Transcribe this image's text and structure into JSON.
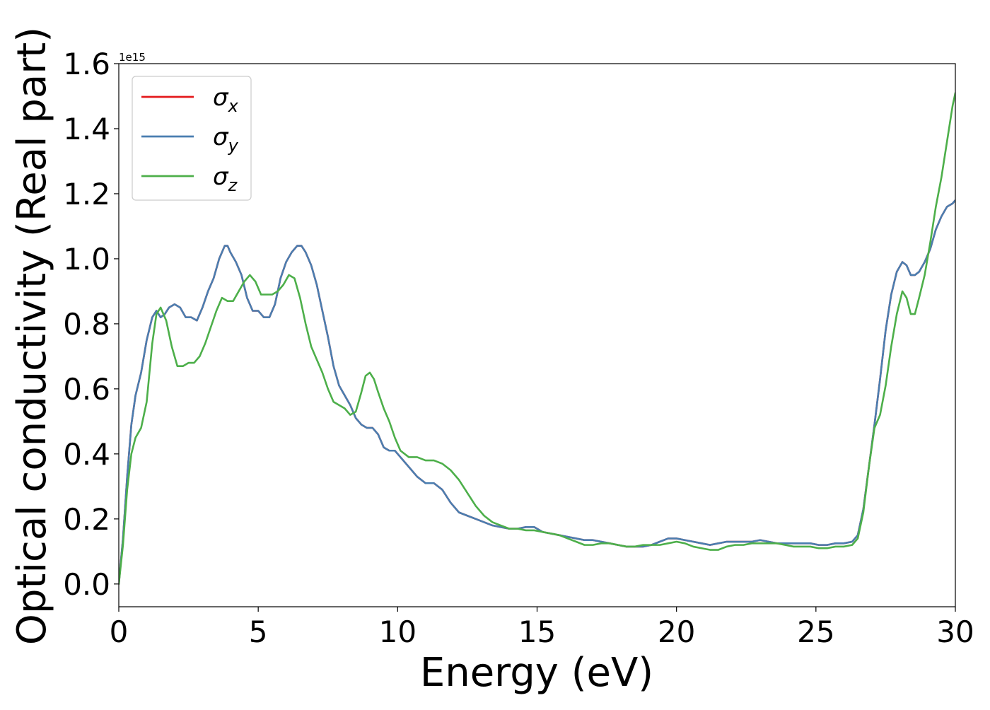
{
  "chart_data": {
    "type": "line",
    "xlabel": "Energy (eV)",
    "ylabel": "Optical conductivity (Real part)",
    "offset_text": "1e15",
    "xlim": [
      0,
      30
    ],
    "ylim": [
      -0.07,
      1.6
    ],
    "x_ticks": [
      {
        "value": 0,
        "label": "0"
      },
      {
        "value": 5,
        "label": "5"
      },
      {
        "value": 10,
        "label": "10"
      },
      {
        "value": 15,
        "label": "15"
      },
      {
        "value": 20,
        "label": "20"
      },
      {
        "value": 25,
        "label": "25"
      },
      {
        "value": 30,
        "label": "30"
      }
    ],
    "y_ticks": [
      {
        "value": 0.0,
        "label": "0.0"
      },
      {
        "value": 0.2,
        "label": "0.2"
      },
      {
        "value": 0.4,
        "label": "0.4"
      },
      {
        "value": 0.6,
        "label": "0.6"
      },
      {
        "value": 0.8,
        "label": "0.8"
      },
      {
        "value": 1.0,
        "label": "1.0"
      },
      {
        "value": 1.2,
        "label": "1.2"
      },
      {
        "value": 1.4,
        "label": "1.4"
      },
      {
        "value": 1.6,
        "label": "1.6"
      }
    ],
    "grid": false,
    "legend_position": "top-left",
    "series": [
      {
        "name": "σx",
        "symbol": "σ",
        "subscript": "x",
        "color": "#e41a1c",
        "x": [
          0,
          0.15,
          0.3,
          0.45,
          0.6,
          0.8,
          1.0,
          1.2,
          1.35,
          1.5,
          1.65,
          1.8,
          2.0,
          2.2,
          2.4,
          2.6,
          2.8,
          3.0,
          3.2,
          3.4,
          3.6,
          3.8,
          3.9,
          4.0,
          4.2,
          4.4,
          4.6,
          4.8,
          5.0,
          5.2,
          5.4,
          5.6,
          5.8,
          6.0,
          6.2,
          6.4,
          6.55,
          6.7,
          6.9,
          7.1,
          7.3,
          7.5,
          7.7,
          7.9,
          8.1,
          8.3,
          8.5,
          8.7,
          8.9,
          9.1,
          9.3,
          9.5,
          9.7,
          9.9,
          10.1,
          10.4,
          10.7,
          11.0,
          11.3,
          11.6,
          11.9,
          12.2,
          12.5,
          12.8,
          13.1,
          13.4,
          13.7,
          14.0,
          14.3,
          14.6,
          14.9,
          15.2,
          15.5,
          15.8,
          16.1,
          16.4,
          16.7,
          17.0,
          17.3,
          17.6,
          17.9,
          18.2,
          18.5,
          18.8,
          19.1,
          19.4,
          19.7,
          20.0,
          20.3,
          20.6,
          20.9,
          21.2,
          21.5,
          21.8,
          22.1,
          22.4,
          22.7,
          23.0,
          23.3,
          23.6,
          23.9,
          24.2,
          24.5,
          24.8,
          25.1,
          25.4,
          25.7,
          26.0,
          26.3,
          26.5,
          26.7,
          26.9,
          27.1,
          27.3,
          27.5,
          27.7,
          27.9,
          28.1,
          28.25,
          28.4,
          28.55,
          28.7,
          28.9,
          29.1,
          29.3,
          29.5,
          29.7,
          29.9,
          30.0
        ],
        "values": [
          0.0,
          0.14,
          0.33,
          0.49,
          0.58,
          0.65,
          0.75,
          0.82,
          0.84,
          0.82,
          0.83,
          0.85,
          0.86,
          0.85,
          0.82,
          0.82,
          0.81,
          0.85,
          0.9,
          0.94,
          1.0,
          1.04,
          1.04,
          1.02,
          0.99,
          0.95,
          0.88,
          0.84,
          0.84,
          0.82,
          0.82,
          0.86,
          0.94,
          0.99,
          1.02,
          1.04,
          1.04,
          1.02,
          0.98,
          0.92,
          0.84,
          0.76,
          0.67,
          0.61,
          0.58,
          0.55,
          0.51,
          0.49,
          0.48,
          0.48,
          0.46,
          0.42,
          0.41,
          0.41,
          0.39,
          0.36,
          0.33,
          0.31,
          0.31,
          0.29,
          0.25,
          0.22,
          0.21,
          0.2,
          0.19,
          0.18,
          0.175,
          0.17,
          0.17,
          0.175,
          0.175,
          0.16,
          0.155,
          0.15,
          0.145,
          0.14,
          0.135,
          0.135,
          0.13,
          0.125,
          0.12,
          0.115,
          0.115,
          0.115,
          0.12,
          0.13,
          0.14,
          0.14,
          0.135,
          0.13,
          0.125,
          0.12,
          0.125,
          0.13,
          0.13,
          0.13,
          0.13,
          0.135,
          0.13,
          0.125,
          0.125,
          0.125,
          0.125,
          0.125,
          0.12,
          0.12,
          0.125,
          0.125,
          0.13,
          0.15,
          0.23,
          0.36,
          0.49,
          0.63,
          0.78,
          0.89,
          0.96,
          0.99,
          0.98,
          0.95,
          0.95,
          0.96,
          0.99,
          1.03,
          1.09,
          1.13,
          1.16,
          1.17,
          1.18
        ]
      },
      {
        "name": "σy",
        "symbol": "σ",
        "subscript": "y",
        "color": "#4a7eb0",
        "x": [
          0,
          0.15,
          0.3,
          0.45,
          0.6,
          0.8,
          1.0,
          1.2,
          1.35,
          1.5,
          1.65,
          1.8,
          2.0,
          2.2,
          2.4,
          2.6,
          2.8,
          3.0,
          3.2,
          3.4,
          3.6,
          3.8,
          3.9,
          4.0,
          4.2,
          4.4,
          4.6,
          4.8,
          5.0,
          5.2,
          5.4,
          5.6,
          5.8,
          6.0,
          6.2,
          6.4,
          6.55,
          6.7,
          6.9,
          7.1,
          7.3,
          7.5,
          7.7,
          7.9,
          8.1,
          8.3,
          8.5,
          8.7,
          8.9,
          9.1,
          9.3,
          9.5,
          9.7,
          9.9,
          10.1,
          10.4,
          10.7,
          11.0,
          11.3,
          11.6,
          11.9,
          12.2,
          12.5,
          12.8,
          13.1,
          13.4,
          13.7,
          14.0,
          14.3,
          14.6,
          14.9,
          15.2,
          15.5,
          15.8,
          16.1,
          16.4,
          16.7,
          17.0,
          17.3,
          17.6,
          17.9,
          18.2,
          18.5,
          18.8,
          19.1,
          19.4,
          19.7,
          20.0,
          20.3,
          20.6,
          20.9,
          21.2,
          21.5,
          21.8,
          22.1,
          22.4,
          22.7,
          23.0,
          23.3,
          23.6,
          23.9,
          24.2,
          24.5,
          24.8,
          25.1,
          25.4,
          25.7,
          26.0,
          26.3,
          26.5,
          26.7,
          26.9,
          27.1,
          27.3,
          27.5,
          27.7,
          27.9,
          28.1,
          28.25,
          28.4,
          28.55,
          28.7,
          28.9,
          29.1,
          29.3,
          29.5,
          29.7,
          29.9,
          30.0
        ],
        "values": [
          0.0,
          0.14,
          0.33,
          0.49,
          0.58,
          0.65,
          0.75,
          0.82,
          0.84,
          0.82,
          0.83,
          0.85,
          0.86,
          0.85,
          0.82,
          0.82,
          0.81,
          0.85,
          0.9,
          0.94,
          1.0,
          1.04,
          1.04,
          1.02,
          0.99,
          0.95,
          0.88,
          0.84,
          0.84,
          0.82,
          0.82,
          0.86,
          0.94,
          0.99,
          1.02,
          1.04,
          1.04,
          1.02,
          0.98,
          0.92,
          0.84,
          0.76,
          0.67,
          0.61,
          0.58,
          0.55,
          0.51,
          0.49,
          0.48,
          0.48,
          0.46,
          0.42,
          0.41,
          0.41,
          0.39,
          0.36,
          0.33,
          0.31,
          0.31,
          0.29,
          0.25,
          0.22,
          0.21,
          0.2,
          0.19,
          0.18,
          0.175,
          0.17,
          0.17,
          0.175,
          0.175,
          0.16,
          0.155,
          0.15,
          0.145,
          0.14,
          0.135,
          0.135,
          0.13,
          0.125,
          0.12,
          0.115,
          0.115,
          0.115,
          0.12,
          0.13,
          0.14,
          0.14,
          0.135,
          0.13,
          0.125,
          0.12,
          0.125,
          0.13,
          0.13,
          0.13,
          0.13,
          0.135,
          0.13,
          0.125,
          0.125,
          0.125,
          0.125,
          0.125,
          0.12,
          0.12,
          0.125,
          0.125,
          0.13,
          0.15,
          0.23,
          0.36,
          0.49,
          0.63,
          0.78,
          0.89,
          0.96,
          0.99,
          0.98,
          0.95,
          0.95,
          0.96,
          0.99,
          1.03,
          1.09,
          1.13,
          1.16,
          1.17,
          1.18
        ]
      },
      {
        "name": "σz",
        "symbol": "σ",
        "subscript": "z",
        "color": "#4daf4a",
        "x": [
          0,
          0.15,
          0.3,
          0.45,
          0.6,
          0.8,
          1.0,
          1.2,
          1.35,
          1.5,
          1.7,
          1.9,
          2.1,
          2.3,
          2.5,
          2.7,
          2.9,
          3.1,
          3.3,
          3.5,
          3.7,
          3.9,
          4.1,
          4.3,
          4.5,
          4.7,
          4.9,
          5.1,
          5.3,
          5.5,
          5.7,
          5.9,
          6.1,
          6.3,
          6.5,
          6.7,
          6.9,
          7.1,
          7.3,
          7.5,
          7.7,
          7.9,
          8.1,
          8.3,
          8.5,
          8.7,
          8.85,
          9.0,
          9.15,
          9.3,
          9.5,
          9.7,
          9.9,
          10.1,
          10.4,
          10.7,
          11.0,
          11.3,
          11.6,
          11.9,
          12.2,
          12.5,
          12.8,
          13.1,
          13.4,
          13.7,
          14.0,
          14.3,
          14.6,
          14.9,
          15.2,
          15.5,
          15.8,
          16.1,
          16.4,
          16.7,
          17.0,
          17.3,
          17.6,
          17.9,
          18.2,
          18.5,
          18.8,
          19.1,
          19.4,
          19.7,
          20.0,
          20.3,
          20.6,
          20.9,
          21.2,
          21.5,
          21.8,
          22.1,
          22.4,
          22.7,
          23.0,
          23.3,
          23.6,
          23.9,
          24.2,
          24.5,
          24.8,
          25.1,
          25.4,
          25.7,
          26.0,
          26.3,
          26.5,
          26.7,
          26.9,
          27.1,
          27.3,
          27.5,
          27.7,
          27.9,
          28.1,
          28.25,
          28.4,
          28.55,
          28.7,
          28.9,
          29.1,
          29.3,
          29.5,
          29.7,
          29.9,
          30.0
        ],
        "values": [
          0.0,
          0.12,
          0.29,
          0.4,
          0.45,
          0.48,
          0.56,
          0.74,
          0.83,
          0.85,
          0.81,
          0.73,
          0.67,
          0.67,
          0.68,
          0.68,
          0.7,
          0.74,
          0.79,
          0.84,
          0.88,
          0.87,
          0.87,
          0.9,
          0.93,
          0.95,
          0.93,
          0.89,
          0.89,
          0.89,
          0.9,
          0.92,
          0.95,
          0.94,
          0.88,
          0.8,
          0.73,
          0.69,
          0.65,
          0.6,
          0.56,
          0.55,
          0.54,
          0.52,
          0.53,
          0.59,
          0.64,
          0.65,
          0.63,
          0.59,
          0.54,
          0.5,
          0.45,
          0.41,
          0.39,
          0.39,
          0.38,
          0.38,
          0.37,
          0.35,
          0.32,
          0.28,
          0.24,
          0.21,
          0.19,
          0.18,
          0.17,
          0.17,
          0.165,
          0.165,
          0.16,
          0.155,
          0.15,
          0.14,
          0.13,
          0.12,
          0.12,
          0.125,
          0.125,
          0.12,
          0.115,
          0.115,
          0.12,
          0.12,
          0.12,
          0.125,
          0.13,
          0.125,
          0.115,
          0.11,
          0.105,
          0.105,
          0.115,
          0.12,
          0.12,
          0.125,
          0.125,
          0.125,
          0.125,
          0.12,
          0.115,
          0.115,
          0.115,
          0.11,
          0.11,
          0.115,
          0.115,
          0.12,
          0.14,
          0.22,
          0.36,
          0.48,
          0.52,
          0.61,
          0.73,
          0.83,
          0.9,
          0.88,
          0.83,
          0.83,
          0.88,
          0.95,
          1.05,
          1.16,
          1.25,
          1.36,
          1.47,
          1.51
        ]
      }
    ]
  }
}
